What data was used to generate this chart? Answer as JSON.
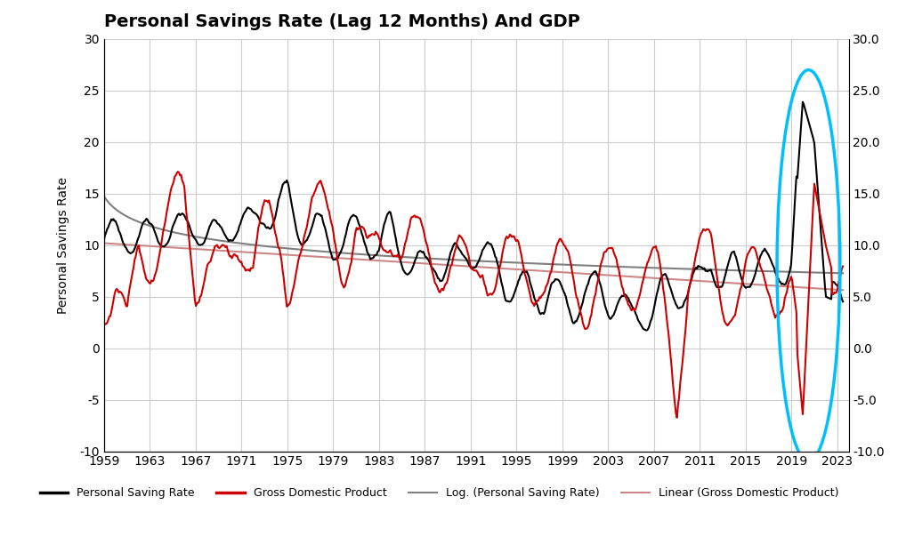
{
  "title": "Personal Savings Rate (Lag 12 Months) And GDP",
  "ylabel_left": "Personal Savings Rate",
  "ylim": [
    -10,
    30
  ],
  "xlim": [
    1959,
    2024
  ],
  "yticks_left": [
    -10,
    -5,
    0,
    5,
    10,
    15,
    20,
    25,
    30
  ],
  "yticks_right": [
    -10.0,
    -5.0,
    0.0,
    5.0,
    10.0,
    15.0,
    20.0,
    25.0,
    30.0
  ],
  "xticks": [
    1959,
    1963,
    1967,
    1971,
    1975,
    1979,
    1983,
    1987,
    1991,
    1995,
    1999,
    2003,
    2007,
    2011,
    2015,
    2019,
    2023
  ],
  "savings_color": "#000000",
  "gdp_color": "#cc0000",
  "log_trend_color": "#808080",
  "linear_trend_color": "#cc8888",
  "ellipse_color": "#00bfff",
  "background_color": "#ffffff",
  "grid_color": "#cccccc",
  "legend_items": [
    {
      "label": "Personal Saving Rate",
      "color": "#000000",
      "lw": 2.5
    },
    {
      "label": "Gross Domestic Product",
      "color": "#cc0000",
      "lw": 2.5
    },
    {
      "label": "Log. (Personal Saving Rate)",
      "color": "#808080",
      "lw": 1.5
    },
    {
      "label": "Linear (Gross Domestic Product)",
      "color": "#cc8888",
      "lw": 1.5
    }
  ],
  "savings_data": {
    "years": [
      1959,
      1960,
      1961,
      1962,
      1963,
      1964,
      1965,
      1966,
      1967,
      1968,
      1969,
      1970,
      1971,
      1972,
      1973,
      1974,
      1975,
      1976,
      1977,
      1978,
      1979,
      1980,
      1981,
      1982,
      1983,
      1984,
      1985,
      1986,
      1987,
      1988,
      1989,
      1990,
      1991,
      1992,
      1993,
      1994,
      1995,
      1996,
      1997,
      1998,
      1999,
      2000,
      2001,
      2002,
      2003,
      2004,
      2005,
      2006,
      2007,
      2008,
      2009,
      2010,
      2011,
      2012,
      2013,
      2014,
      2015,
      2016,
      2017,
      2018,
      2019,
      2020,
      2021,
      2022,
      2023
    ],
    "values": [
      10.5,
      10.8,
      11.0,
      10.9,
      10.5,
      11.5,
      11.5,
      11.3,
      12.0,
      11.0,
      10.5,
      12.0,
      12.5,
      11.5,
      13.5,
      13.0,
      14.5,
      12.0,
      11.0,
      11.5,
      10.0,
      10.5,
      11.5,
      11.0,
      9.5,
      11.5,
      9.5,
      8.0,
      7.5,
      8.5,
      8.0,
      8.5,
      9.5,
      9.5,
      8.0,
      6.5,
      6.0,
      5.5,
      5.0,
      6.0,
      4.0,
      4.0,
      5.5,
      5.5,
      5.0,
      4.5,
      3.0,
      3.5,
      3.5,
      5.5,
      6.0,
      5.5,
      6.0,
      9.0,
      6.0,
      7.5,
      7.5,
      8.0,
      7.5,
      8.0,
      8.0,
      24.0,
      20.0,
      5.0,
      4.5
    ]
  },
  "gdp_data": {
    "years": [
      1959,
      1960,
      1961,
      1962,
      1963,
      1964,
      1965,
      1966,
      1967,
      1968,
      1969,
      1970,
      1971,
      1972,
      1973,
      1974,
      1975,
      1976,
      1977,
      1978,
      1979,
      1980,
      1981,
      1982,
      1983,
      1984,
      1985,
      1986,
      1987,
      1988,
      1989,
      1990,
      1991,
      1992,
      1993,
      1994,
      1995,
      1996,
      1997,
      1998,
      1999,
      2000,
      2001,
      2002,
      2003,
      2004,
      2005,
      2006,
      2007,
      2008,
      2009,
      2010,
      2011,
      2012,
      2013,
      2014,
      2015,
      2016,
      2017,
      2018,
      2019,
      2020,
      2021,
      2022,
      2023
    ],
    "values": [
      6.0,
      5.5,
      0.5,
      9.5,
      9.5,
      11.0,
      13.0,
      14.5,
      7.0,
      10.0,
      7.0,
      6.5,
      11.0,
      11.0,
      12.5,
      8.0,
      5.5,
      12.0,
      12.5,
      12.5,
      12.0,
      9.0,
      12.0,
      7.0,
      10.0,
      13.5,
      10.0,
      9.5,
      9.5,
      9.5,
      8.5,
      8.0,
      5.0,
      9.5,
      8.0,
      8.0,
      7.0,
      7.5,
      8.0,
      6.5,
      7.0,
      7.5,
      5.5,
      6.0,
      6.5,
      7.0,
      7.0,
      7.5,
      7.0,
      3.0,
      -3.5,
      7.5,
      8.0,
      8.5,
      5.5,
      6.0,
      6.5,
      6.0,
      6.5,
      7.0,
      6.0,
      -6.5,
      16.0,
      10.0,
      5.5
    ]
  }
}
